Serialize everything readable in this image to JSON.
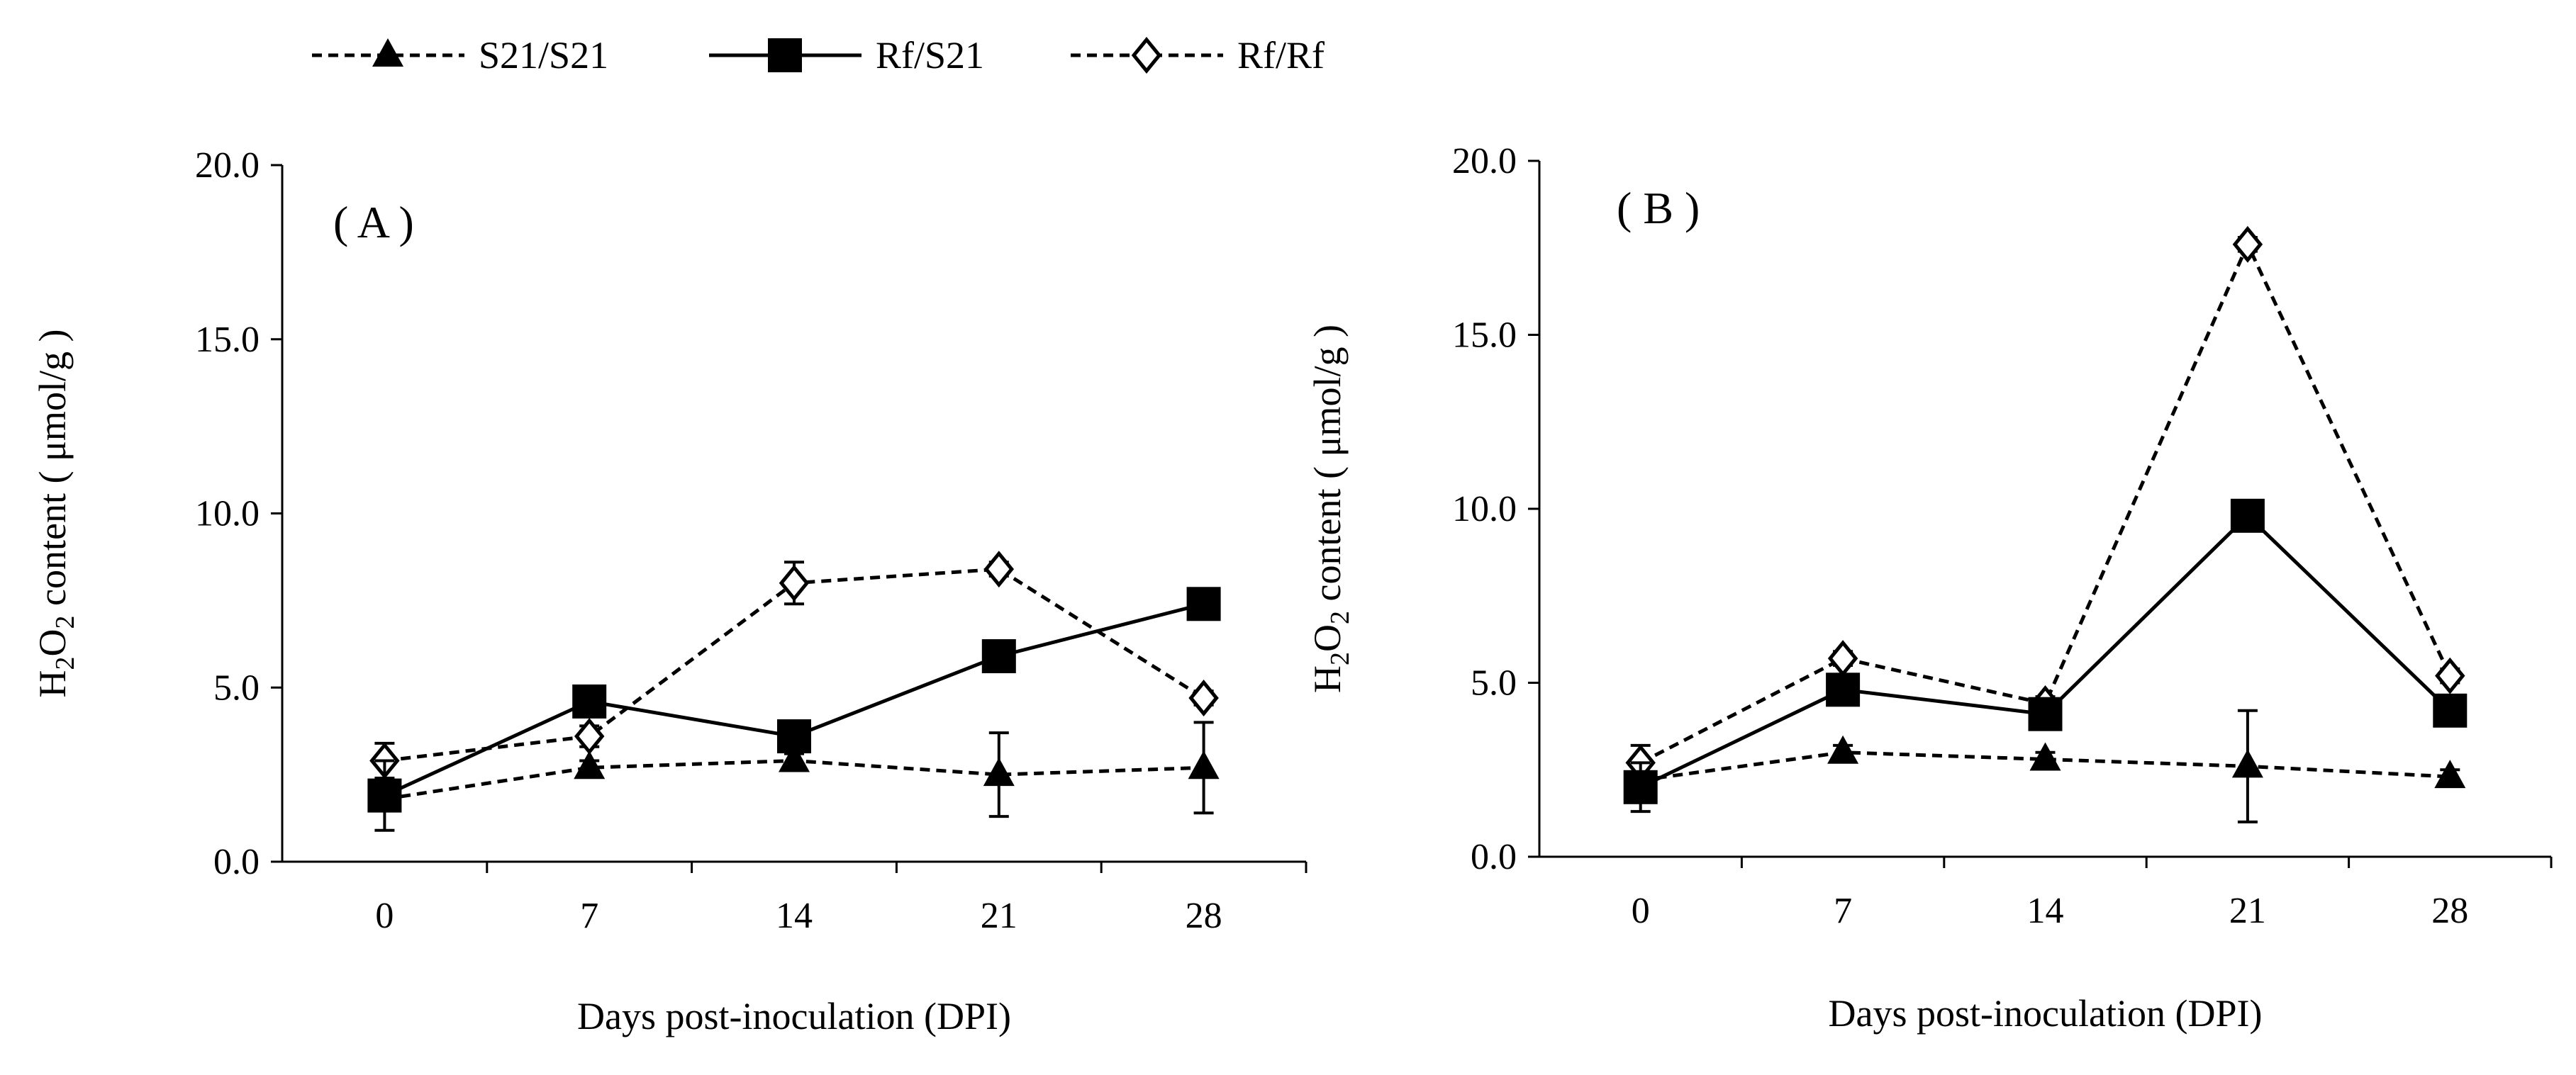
{
  "legend": {
    "items": [
      {
        "name": "S21/S21",
        "marker": "triangle",
        "line": "dashed"
      },
      {
        "name": "Rf/S21",
        "marker": "square",
        "line": "solid"
      },
      {
        "name": "Rf/Rf",
        "marker": "diamond-open",
        "line": "dashed"
      }
    ]
  },
  "chart_data": [
    {
      "type": "line",
      "panel_label": "( A )",
      "xlabel": "Days post-inoculation (DPI)",
      "ylabel_prefix": "H",
      "ylabel_sub1": "2",
      "ylabel_mid": "O",
      "ylabel_sub2": "2",
      "ylabel_suffix": "  content ( μmol/g )",
      "categories": [
        "0",
        "7",
        "14",
        "21",
        "28"
      ],
      "ylim": [
        0,
        20
      ],
      "yticks": [
        "0.0",
        "5.0",
        "10.0",
        "15.0",
        "20.0"
      ],
      "grid": false,
      "series": [
        {
          "name": "S21/S21",
          "values": [
            1.8,
            2.7,
            2.9,
            2.5,
            2.7
          ],
          "errors": [
            0.1,
            0.2,
            0.2,
            1.2,
            1.3
          ]
        },
        {
          "name": "Rf/S21",
          "values": [
            1.9,
            4.6,
            3.6,
            5.9,
            7.4
          ],
          "errors": [
            1.0,
            0.2,
            0.2,
            0.2,
            0.2
          ]
        },
        {
          "name": "Rf/Rf",
          "values": [
            2.9,
            3.6,
            8.0,
            8.4,
            4.7
          ],
          "errors": [
            0.5,
            0.3,
            0.6,
            0.2,
            0.2
          ]
        }
      ]
    },
    {
      "type": "line",
      "panel_label": "( B )",
      "xlabel": "Days post-inoculation (DPI)",
      "ylabel_prefix": "H",
      "ylabel_sub1": "2",
      "ylabel_mid": "O",
      "ylabel_sub2": "2",
      "ylabel_suffix": "  content ( μmol/g )",
      "categories": [
        "0",
        "7",
        "14",
        "21",
        "28"
      ],
      "ylim": [
        0,
        20
      ],
      "yticks": [
        "0.0",
        "5.0",
        "10.0",
        "15.0",
        "20.0"
      ],
      "grid": false,
      "series": [
        {
          "name": "S21/S21",
          "values": [
            2.2,
            3.0,
            2.8,
            2.6,
            2.3
          ],
          "errors": [
            0.1,
            0.2,
            0.2,
            1.6,
            0.2
          ]
        },
        {
          "name": "Rf/S21",
          "values": [
            2.0,
            4.8,
            4.1,
            9.8,
            4.2
          ],
          "errors": [
            0.7,
            0.2,
            0.2,
            0.2,
            0.2
          ]
        },
        {
          "name": "Rf/Rf",
          "values": [
            2.7,
            5.7,
            4.4,
            17.6,
            5.2
          ],
          "errors": [
            0.5,
            0.2,
            0.2,
            0.2,
            0.2
          ]
        }
      ]
    }
  ]
}
